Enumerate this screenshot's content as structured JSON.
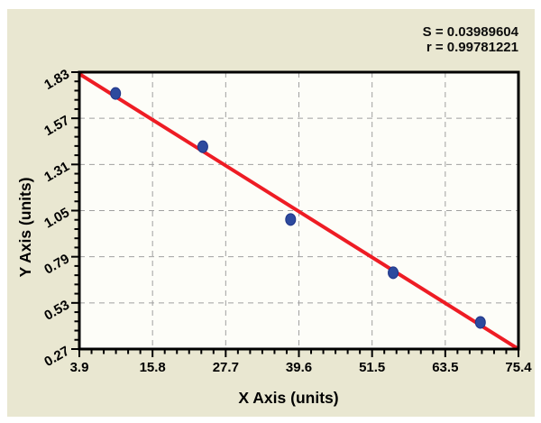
{
  "page": {
    "background": "#ffffff",
    "canvas_color": "#e9e7d1"
  },
  "stats": {
    "s_label": "S = 0.03989604",
    "r_label": "r = 0.99781221"
  },
  "chart_data": {
    "type": "scatter",
    "title": "",
    "xlabel": "X Axis (units)",
    "ylabel": "Y Axis (units)",
    "xlim": [
      3.9,
      75.4
    ],
    "ylim": [
      0.27,
      1.83
    ],
    "x_tick_labels": [
      "3.9",
      "15.8",
      "27.7",
      "39.6",
      "51.5",
      "63.5",
      "75.4"
    ],
    "y_tick_labels": [
      "0.27",
      "0.53",
      "0.79",
      "1.05",
      "1.31",
      "1.57",
      "1.83"
    ],
    "x_subdivisions": 6,
    "y_subdivisions": 5,
    "grid": true,
    "points": [
      {
        "x": 9.8,
        "y": 1.71
      },
      {
        "x": 24.0,
        "y": 1.41
      },
      {
        "x": 38.3,
        "y": 1.0
      },
      {
        "x": 55.0,
        "y": 0.7
      },
      {
        "x": 69.2,
        "y": 0.42
      }
    ],
    "regression_line": {
      "x1": 3.9,
      "y1": 1.82,
      "x2": 75.4,
      "y2": 0.27
    },
    "colors": {
      "point": "#2d4a9e",
      "point_edge": "#1f3588",
      "line": "#ee1c24",
      "grid": "#a0a0a0",
      "axis": "#000000",
      "plot_bg": "#fdfdf8",
      "text": "#000000"
    }
  }
}
